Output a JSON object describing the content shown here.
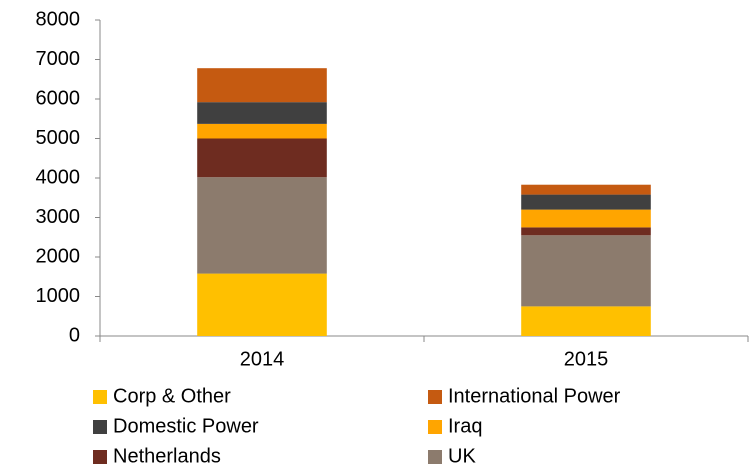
{
  "chart_data": {
    "type": "stacked_bar",
    "categories": [
      "2014",
      "2015"
    ],
    "series": [
      {
        "name": "Corp & Other",
        "color": "#ffc000",
        "values": [
          1580,
          750
        ]
      },
      {
        "name": "UK",
        "color": "#8c7b6d",
        "values": [
          2440,
          1800
        ]
      },
      {
        "name": "Netherlands",
        "color": "#6e2c20",
        "values": [
          980,
          200
        ]
      },
      {
        "name": "Iraq",
        "color": "#ffa500",
        "values": [
          370,
          450
        ]
      },
      {
        "name": "Domestic Power",
        "color": "#404040",
        "values": [
          550,
          380
        ]
      },
      {
        "name": "International Power",
        "color": "#c55a11",
        "values": [
          860,
          250
        ]
      }
    ],
    "ylim": [
      0,
      8000
    ],
    "yticks": [
      0,
      1000,
      2000,
      3000,
      4000,
      5000,
      6000,
      7000,
      8000
    ]
  }
}
